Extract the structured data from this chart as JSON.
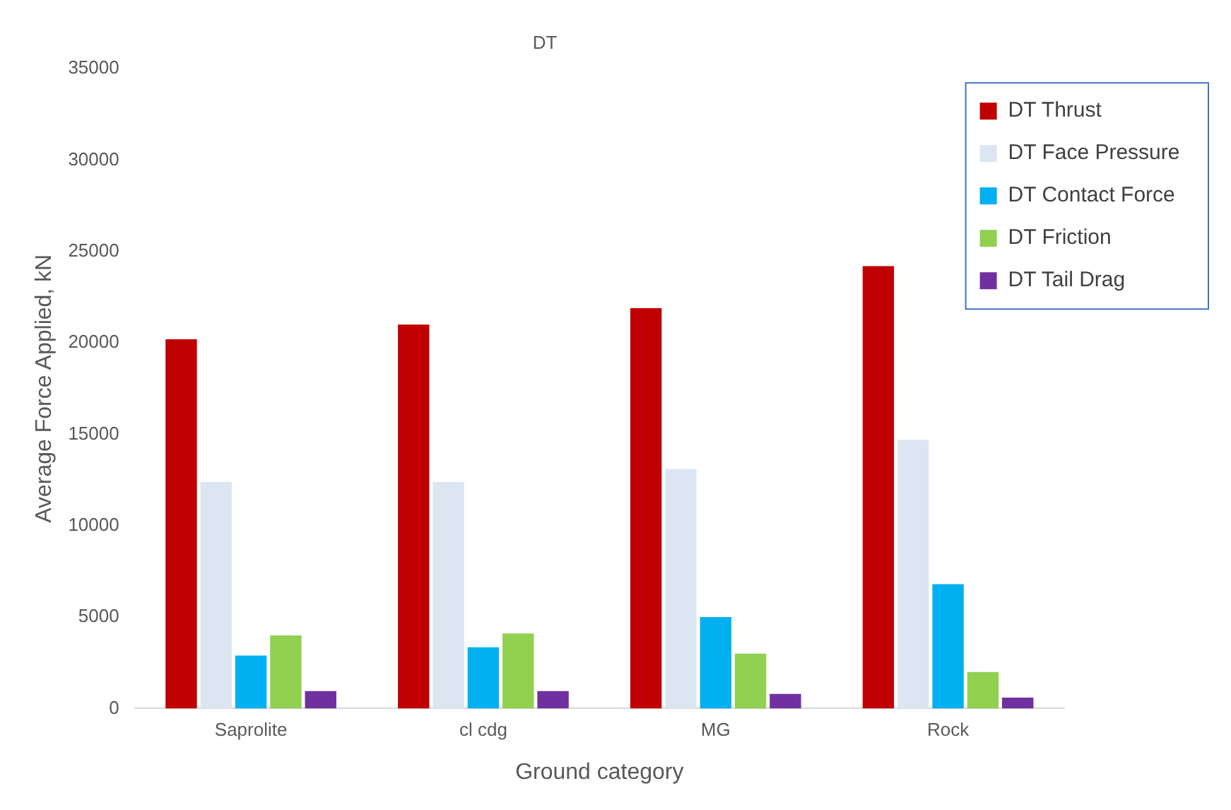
{
  "chart_data": {
    "type": "bar",
    "title": "DT",
    "xlabel": "Ground category",
    "ylabel": "Average Force Applied, kN",
    "categories": [
      "Saprolite",
      "cl cdg",
      "MG",
      "Rock"
    ],
    "series": [
      {
        "name": "DT Thrust",
        "color": "#c00000",
        "values": [
          20200,
          21000,
          21900,
          24200
        ]
      },
      {
        "name": "DT Face Pressure",
        "color": "#dce6f2",
        "values": [
          12400,
          12400,
          13100,
          14700
        ]
      },
      {
        "name": "DT Contact Force",
        "color": "#00b0f0",
        "values": [
          2900,
          3350,
          5000,
          6800
        ]
      },
      {
        "name": "DT Friction",
        "color": "#92d050",
        "values": [
          4000,
          4100,
          3000,
          2000
        ]
      },
      {
        "name": "DT Tail Drag",
        "color": "#7030a0",
        "values": [
          950,
          950,
          800,
          600
        ]
      }
    ],
    "ylim": [
      0,
      35000
    ],
    "yticks": [
      0,
      5000,
      10000,
      15000,
      20000,
      25000,
      30000,
      35000
    ],
    "grid": false,
    "legend": "top right"
  }
}
